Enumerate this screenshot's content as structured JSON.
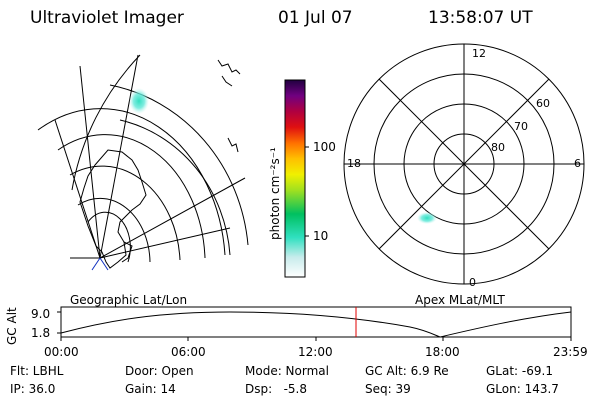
{
  "header": {
    "instrument": "Ultraviolet Imager",
    "date": "01 Jul 07",
    "time": "13:58:07 UT"
  },
  "colorbar": {
    "unit_label": "photon cm⁻²s⁻¹",
    "tick_labels": [
      "100",
      "10"
    ]
  },
  "polar_plot": {
    "mlt_labels": {
      "top": "12",
      "left": "18",
      "right": "6",
      "bottom": "0"
    },
    "lat_labels": [
      "60",
      "70",
      "80"
    ]
  },
  "altitude_panel": {
    "y_label": "GC Alt",
    "y_ticks": [
      "9.0",
      "1.8"
    ],
    "left_title": "Geographic Lat/Lon",
    "right_title": "Apex MLat/MLT",
    "x_ticks": [
      "00:00",
      "06:00",
      "12:00",
      "18:00",
      "23:59"
    ],
    "marker_color": "#e00000"
  },
  "info": {
    "row1": {
      "filter": "Flt: LBHL",
      "door": "Door: Open",
      "mode": "Mode: Normal",
      "gc_alt": "GC Alt: 6.9 Re",
      "glat": "GLat: -69.1"
    },
    "row2": {
      "ip": "IP: 36.0",
      "gain": "Gain: 14",
      "dsp": "Dsp:   -5.8",
      "seq": "Seq: 39",
      "glon": "GLon: 143.7"
    }
  }
}
